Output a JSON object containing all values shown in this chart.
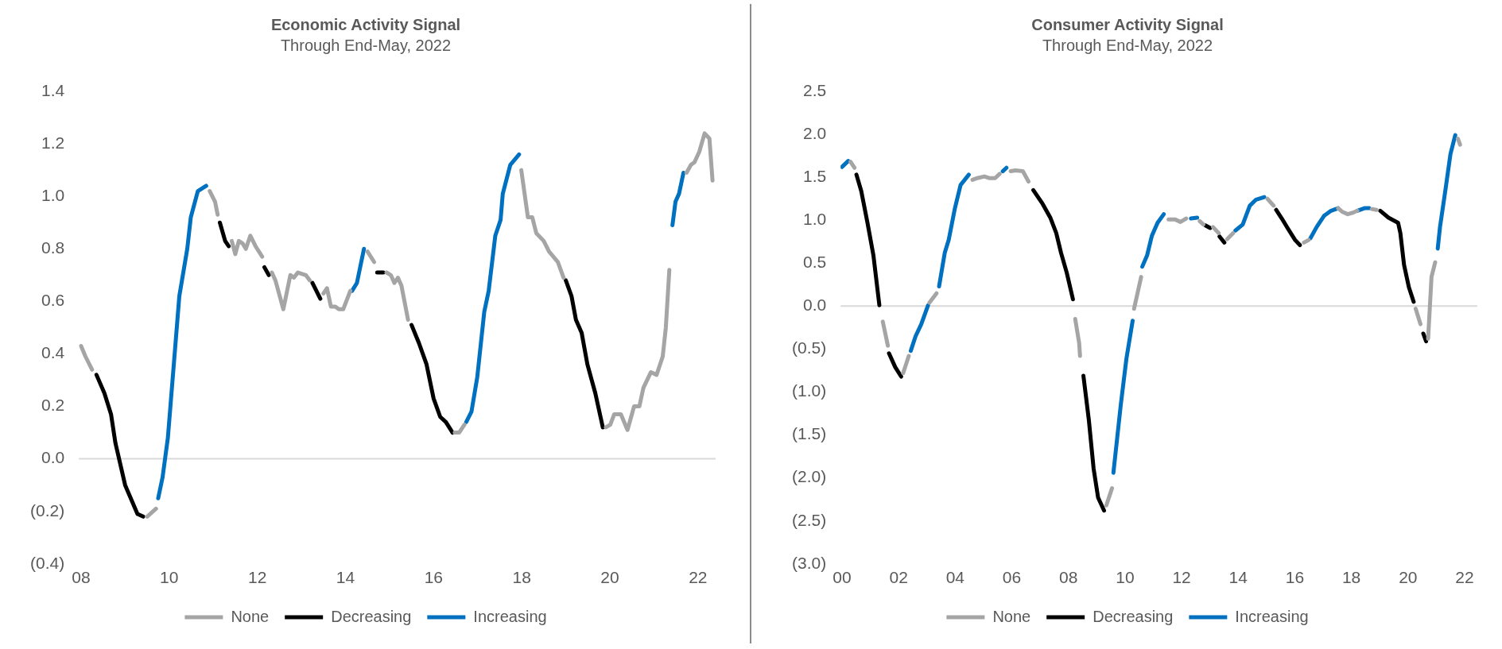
{
  "chart_data": [
    {
      "type": "line",
      "title": "Economic Activity Signal",
      "subtitle": "Through End-May, 2022",
      "legend": "bottom",
      "marker": "none",
      "line_style": "solid",
      "xlim": [
        2007.95,
        2022.4
      ],
      "xticks": [
        {
          "value": 2008,
          "label": "08"
        },
        {
          "value": 2010,
          "label": "10"
        },
        {
          "value": 2012,
          "label": "12"
        },
        {
          "value": 2014,
          "label": "14"
        },
        {
          "value": 2016,
          "label": "16"
        },
        {
          "value": 2018,
          "label": "18"
        },
        {
          "value": 2020,
          "label": "20"
        },
        {
          "value": 2022,
          "label": "22"
        }
      ],
      "ylim": [
        -0.4,
        1.4
      ],
      "yticks": [
        {
          "value": -0.4,
          "label": "(0.4)"
        },
        {
          "value": -0.2,
          "label": "(0.2)"
        },
        {
          "value": 0,
          "label": "0.0"
        },
        {
          "value": 0.2,
          "label": "0.2"
        },
        {
          "value": 0.4,
          "label": "0.4"
        },
        {
          "value": 0.6,
          "label": "0.6"
        },
        {
          "value": 0.8,
          "label": "0.8"
        },
        {
          "value": 1.0,
          "label": "1.0"
        },
        {
          "value": 1.2,
          "label": "1.2"
        },
        {
          "value": 1.4,
          "label": "1.4"
        }
      ],
      "ref_lines": [
        {
          "axis": "y",
          "value": 0,
          "color": "#d9d9d9"
        }
      ],
      "x": [
        2008.0,
        2008.1,
        2008.25,
        2008.35,
        2008.53,
        2008.68,
        2008.78,
        2009.0,
        2009.28,
        2009.41,
        2009.5,
        2009.7,
        2009.75,
        2009.85,
        2009.97,
        2010.23,
        2010.41,
        2010.49,
        2010.65,
        2010.84,
        2010.92,
        2011.04,
        2011.1,
        2011.15,
        2011.27,
        2011.35,
        2011.42,
        2011.5,
        2011.58,
        2011.67,
        2011.74,
        2011.84,
        2011.96,
        2012.11,
        2012.16,
        2012.26,
        2012.33,
        2012.41,
        2012.59,
        2012.75,
        2012.83,
        2012.92,
        2013.1,
        2013.19,
        2013.25,
        2013.43,
        2013.5,
        2013.58,
        2013.67,
        2013.77,
        2013.85,
        2013.95,
        2014.11,
        2014.15,
        2014.26,
        2014.42,
        2014.5,
        2014.65,
        2014.72,
        2014.86,
        2014.93,
        2015.03,
        2015.11,
        2015.19,
        2015.27,
        2015.42,
        2015.5,
        2015.67,
        2015.84,
        2016.0,
        2016.15,
        2016.28,
        2016.43,
        2016.48,
        2016.58,
        2016.7,
        2016.74,
        2016.86,
        2016.99,
        2017.15,
        2017.25,
        2017.4,
        2017.52,
        2017.57,
        2017.74,
        2017.94,
        2017.99,
        2018.14,
        2018.24,
        2018.33,
        2018.5,
        2018.62,
        2018.82,
        2018.95,
        2019.0,
        2019.13,
        2019.23,
        2019.36,
        2019.49,
        2019.67,
        2019.84,
        2019.91,
        2020.01,
        2020.1,
        2020.25,
        2020.4,
        2020.55,
        2020.67,
        2020.76,
        2020.93,
        2021.06,
        2021.2,
        2021.27,
        2021.35,
        2021.42,
        2021.49,
        2021.57,
        2021.67,
        2021.74,
        2021.84,
        2021.92,
        2022.03,
        2022.15,
        2022.26,
        2022.33
      ],
      "series": [
        {
          "name": "None",
          "color": "#a5a5a5",
          "values": [
            0.43,
            0.39,
            0.34,
            null,
            null,
            null,
            null,
            null,
            null,
            null,
            -0.22,
            -0.19,
            null,
            null,
            null,
            null,
            null,
            null,
            null,
            null,
            1.02,
            0.98,
            0.93,
            null,
            null,
            null,
            0.83,
            0.78,
            0.83,
            0.82,
            0.8,
            0.85,
            0.81,
            0.77,
            null,
            null,
            0.71,
            0.68,
            0.57,
            0.7,
            0.69,
            0.71,
            0.7,
            0.68,
            null,
            null,
            0.63,
            0.65,
            0.58,
            0.58,
            0.57,
            0.57,
            0.64,
            null,
            null,
            null,
            0.79,
            0.75,
            null,
            null,
            0.71,
            0.7,
            0.67,
            0.69,
            0.66,
            0.53,
            null,
            null,
            null,
            null,
            null,
            null,
            null,
            0.1,
            0.1,
            0.13,
            null,
            null,
            null,
            null,
            null,
            null,
            null,
            null,
            null,
            null,
            1.1,
            0.92,
            0.92,
            0.86,
            0.83,
            0.79,
            0.75,
            0.69,
            null,
            null,
            null,
            null,
            null,
            null,
            null,
            0.12,
            0.13,
            0.17,
            0.17,
            0.11,
            0.2,
            0.2,
            0.27,
            0.33,
            0.32,
            0.39,
            0.5,
            0.72,
            null,
            null,
            null,
            null,
            1.09,
            1.12,
            1.13,
            1.17,
            1.24,
            1.22,
            1.06
          ]
        },
        {
          "name": "Decreasing",
          "color": "#000000",
          "values": [
            null,
            null,
            null,
            0.32,
            0.25,
            0.17,
            0.06,
            -0.1,
            -0.21,
            -0.22,
            null,
            null,
            null,
            null,
            null,
            null,
            null,
            null,
            null,
            null,
            null,
            null,
            null,
            0.9,
            0.83,
            0.81,
            null,
            null,
            null,
            null,
            null,
            null,
            null,
            null,
            0.73,
            0.7,
            null,
            null,
            null,
            null,
            null,
            null,
            null,
            null,
            0.67,
            0.61,
            null,
            null,
            null,
            null,
            null,
            null,
            null,
            null,
            null,
            null,
            null,
            null,
            0.71,
            0.71,
            null,
            null,
            null,
            null,
            null,
            null,
            0.51,
            0.44,
            0.36,
            0.23,
            0.16,
            0.14,
            0.1,
            null,
            null,
            null,
            null,
            null,
            null,
            null,
            null,
            null,
            null,
            null,
            null,
            null,
            null,
            null,
            null,
            null,
            null,
            null,
            null,
            null,
            0.68,
            0.62,
            0.53,
            0.48,
            0.36,
            0.25,
            0.12,
            null,
            null,
            null,
            null,
            null,
            null,
            null,
            null,
            null,
            null,
            null,
            null,
            null,
            null,
            null,
            null,
            null,
            null,
            null,
            null,
            null,
            null,
            null,
            null
          ]
        },
        {
          "name": "Increasing",
          "color": "#0070c0",
          "values": [
            null,
            null,
            null,
            null,
            null,
            null,
            null,
            null,
            null,
            null,
            null,
            null,
            -0.15,
            -0.07,
            0.08,
            0.62,
            0.8,
            0.92,
            1.02,
            1.04,
            null,
            null,
            null,
            null,
            null,
            null,
            null,
            null,
            null,
            null,
            null,
            null,
            null,
            null,
            null,
            null,
            null,
            null,
            null,
            null,
            null,
            null,
            null,
            null,
            null,
            null,
            null,
            null,
            null,
            null,
            null,
            null,
            null,
            0.64,
            0.67,
            0.8,
            null,
            null,
            null,
            null,
            null,
            null,
            null,
            null,
            null,
            null,
            null,
            null,
            null,
            null,
            null,
            null,
            null,
            null,
            null,
            null,
            0.14,
            0.18,
            0.31,
            0.56,
            0.64,
            0.85,
            0.91,
            1.01,
            1.12,
            1.16,
            null,
            null,
            null,
            null,
            null,
            null,
            null,
            null,
            null,
            null,
            null,
            null,
            null,
            null,
            null,
            null,
            null,
            null,
            null,
            null,
            null,
            null,
            null,
            null,
            null,
            null,
            null,
            null,
            0.89,
            0.98,
            1.01,
            1.09,
            null,
            null,
            null,
            null,
            null,
            null,
            null
          ]
        }
      ]
    },
    {
      "type": "line",
      "title": "Consumer Activity Signal",
      "subtitle": "Through End-May, 2022",
      "legend": "bottom",
      "marker": "none",
      "line_style": "solid",
      "xlim": [
        1999.95,
        2022.45
      ],
      "xticks": [
        {
          "value": 2000,
          "label": "00"
        },
        {
          "value": 2002,
          "label": "02"
        },
        {
          "value": 2004,
          "label": "04"
        },
        {
          "value": 2006,
          "label": "06"
        },
        {
          "value": 2008,
          "label": "08"
        },
        {
          "value": 2010,
          "label": "10"
        },
        {
          "value": 2012,
          "label": "12"
        },
        {
          "value": 2014,
          "label": "14"
        },
        {
          "value": 2016,
          "label": "16"
        },
        {
          "value": 2018,
          "label": "18"
        },
        {
          "value": 2020,
          "label": "20"
        },
        {
          "value": 2022,
          "label": "22"
        }
      ],
      "ylim": [
        -3.0,
        2.5
      ],
      "yticks": [
        {
          "value": -3.0,
          "label": "(3.0)"
        },
        {
          "value": -2.5,
          "label": "(2.5)"
        },
        {
          "value": -2.0,
          "label": "(2.0)"
        },
        {
          "value": -1.5,
          "label": "(1.5)"
        },
        {
          "value": -1.0,
          "label": "(1.0)"
        },
        {
          "value": -0.5,
          "label": "(0.5)"
        },
        {
          "value": 0,
          "label": "0.0"
        },
        {
          "value": 0.5,
          "label": "0.5"
        },
        {
          "value": 1.0,
          "label": "1.0"
        },
        {
          "value": 1.5,
          "label": "1.5"
        },
        {
          "value": 2.0,
          "label": "2.0"
        },
        {
          "value": 2.5,
          "label": "2.5"
        }
      ],
      "ref_lines": [
        {
          "axis": "y",
          "value": 0,
          "color": "#d9d9d9"
        }
      ],
      "x": [
        2000.0,
        2000.22,
        2000.3,
        2000.44,
        2000.51,
        2000.68,
        2000.9,
        2001.11,
        2001.32,
        2001.44,
        2001.62,
        2001.66,
        2001.88,
        2002.09,
        2002.16,
        2002.36,
        2002.43,
        2002.6,
        2002.8,
        2003.04,
        2003.09,
        2003.34,
        2003.43,
        2003.63,
        2003.77,
        2003.99,
        2004.19,
        2004.48,
        2004.61,
        2004.78,
        2005.03,
        2005.2,
        2005.41,
        2005.57,
        2005.68,
        2005.81,
        2005.96,
        2006.13,
        2006.39,
        2006.59,
        2006.76,
        2007.09,
        2007.36,
        2007.57,
        2007.74,
        2007.94,
        2008.16,
        2008.24,
        2008.38,
        2008.41,
        2008.53,
        2008.72,
        2008.89,
        2009.05,
        2009.26,
        2009.34,
        2009.54,
        2009.59,
        2009.85,
        2010.05,
        2010.27,
        2010.32,
        2010.57,
        2010.61,
        2010.78,
        2010.95,
        2011.15,
        2011.37,
        2011.54,
        2011.76,
        2011.96,
        2012.16,
        2012.33,
        2012.55,
        2012.64,
        2012.77,
        2012.84,
        2013.01,
        2013.11,
        2013.31,
        2013.34,
        2013.51,
        2013.61,
        2013.82,
        2013.9,
        2014.16,
        2014.41,
        2014.63,
        2014.92,
        2015.03,
        2015.25,
        2015.34,
        2015.54,
        2015.76,
        2016.01,
        2016.18,
        2016.32,
        2016.49,
        2016.55,
        2016.77,
        2017.03,
        2017.28,
        2017.53,
        2017.67,
        2017.87,
        2018.07,
        2018.21,
        2018.46,
        2018.63,
        2018.72,
        2018.89,
        2019.02,
        2019.31,
        2019.65,
        2019.73,
        2019.86,
        2020.03,
        2020.2,
        2020.27,
        2020.44,
        2020.54,
        2020.64,
        2020.71,
        2020.83,
        2020.96,
        2021.05,
        2021.13,
        2021.33,
        2021.5,
        2021.67,
        2021.76,
        2021.84
      ],
      "series": [
        {
          "name": "None",
          "color": "#a5a5a5",
          "values": [
            null,
            null,
            1.68,
            1.61,
            null,
            null,
            null,
            null,
            null,
            -0.18,
            -0.46,
            null,
            null,
            null,
            -0.78,
            -0.58,
            null,
            null,
            null,
            null,
            0.04,
            0.15,
            null,
            null,
            null,
            null,
            null,
            null,
            1.47,
            1.49,
            1.51,
            1.49,
            1.49,
            1.54,
            null,
            null,
            1.57,
            1.58,
            1.57,
            1.45,
            null,
            null,
            null,
            null,
            null,
            null,
            null,
            -0.15,
            -0.43,
            -0.58,
            null,
            null,
            null,
            null,
            null,
            -2.32,
            -2.12,
            null,
            null,
            null,
            null,
            -0.03,
            0.34,
            null,
            null,
            null,
            null,
            null,
            1.01,
            1.01,
            0.98,
            1.02,
            null,
            null,
            0.99,
            0.95,
            null,
            null,
            0.92,
            0.85,
            null,
            null,
            0.78,
            0.85,
            null,
            null,
            null,
            null,
            null,
            1.25,
            1.17,
            null,
            null,
            null,
            null,
            null,
            0.74,
            0.77,
            null,
            null,
            null,
            null,
            1.14,
            1.1,
            1.07,
            1.09,
            1.11,
            null,
            null,
            1.13,
            1.12,
            null,
            null,
            null,
            null,
            null,
            null,
            null,
            -0.03,
            -0.21,
            null,
            null,
            -0.38,
            0.34,
            0.51,
            null,
            null,
            null,
            null,
            null,
            1.95,
            1.88
          ]
        },
        {
          "name": "Decreasing",
          "color": "#000000",
          "values": [
            null,
            null,
            null,
            null,
            1.53,
            1.34,
            0.97,
            0.59,
            0.01,
            null,
            null,
            -0.55,
            -0.71,
            -0.82,
            null,
            null,
            null,
            null,
            null,
            null,
            null,
            null,
            null,
            null,
            null,
            null,
            null,
            null,
            null,
            null,
            null,
            null,
            null,
            null,
            null,
            null,
            null,
            null,
            null,
            null,
            1.35,
            1.19,
            1.03,
            0.85,
            0.62,
            0.39,
            0.08,
            null,
            null,
            null,
            -0.81,
            -1.32,
            -1.89,
            -2.23,
            -2.38,
            null,
            null,
            null,
            null,
            null,
            null,
            null,
            null,
            null,
            null,
            null,
            null,
            null,
            null,
            null,
            null,
            null,
            null,
            null,
            null,
            null,
            0.94,
            0.91,
            null,
            null,
            0.81,
            0.74,
            null,
            null,
            null,
            null,
            null,
            null,
            null,
            null,
            null,
            1.12,
            1.02,
            0.9,
            0.77,
            0.71,
            null,
            null,
            null,
            null,
            null,
            null,
            null,
            null,
            null,
            null,
            null,
            null,
            null,
            null,
            null,
            1.11,
            1.03,
            0.97,
            0.85,
            0.48,
            0.22,
            0.05,
            null,
            null,
            -0.32,
            -0.41,
            null,
            null,
            null,
            null,
            null,
            null,
            null,
            null,
            null,
            null
          ]
        },
        {
          "name": "Increasing",
          "color": "#0070c0",
          "values": [
            1.62,
            1.69,
            null,
            null,
            null,
            null,
            null,
            null,
            null,
            null,
            null,
            null,
            null,
            null,
            null,
            null,
            -0.52,
            -0.35,
            -0.21,
            0.01,
            null,
            null,
            0.23,
            0.62,
            0.77,
            1.14,
            1.41,
            1.53,
            null,
            null,
            null,
            null,
            null,
            null,
            1.57,
            1.61,
            null,
            null,
            null,
            null,
            null,
            null,
            null,
            null,
            null,
            null,
            null,
            null,
            null,
            null,
            null,
            null,
            null,
            null,
            null,
            null,
            null,
            -1.94,
            -1.15,
            -0.61,
            -0.17,
            null,
            null,
            0.46,
            0.59,
            0.82,
            0.97,
            1.07,
            null,
            null,
            null,
            null,
            1.02,
            1.03,
            null,
            null,
            null,
            null,
            null,
            null,
            null,
            null,
            null,
            null,
            0.88,
            0.95,
            1.17,
            1.24,
            1.27,
            null,
            null,
            null,
            null,
            null,
            null,
            null,
            null,
            null,
            0.79,
            0.92,
            1.05,
            1.11,
            1.14,
            null,
            null,
            null,
            1.11,
            1.14,
            1.14,
            null,
            null,
            null,
            null,
            null,
            null,
            null,
            null,
            null,
            null,
            null,
            null,
            null,
            null,
            null,
            null,
            0.67,
            0.92,
            1.37,
            1.77,
            1.99,
            null,
            null
          ]
        }
      ]
    }
  ]
}
